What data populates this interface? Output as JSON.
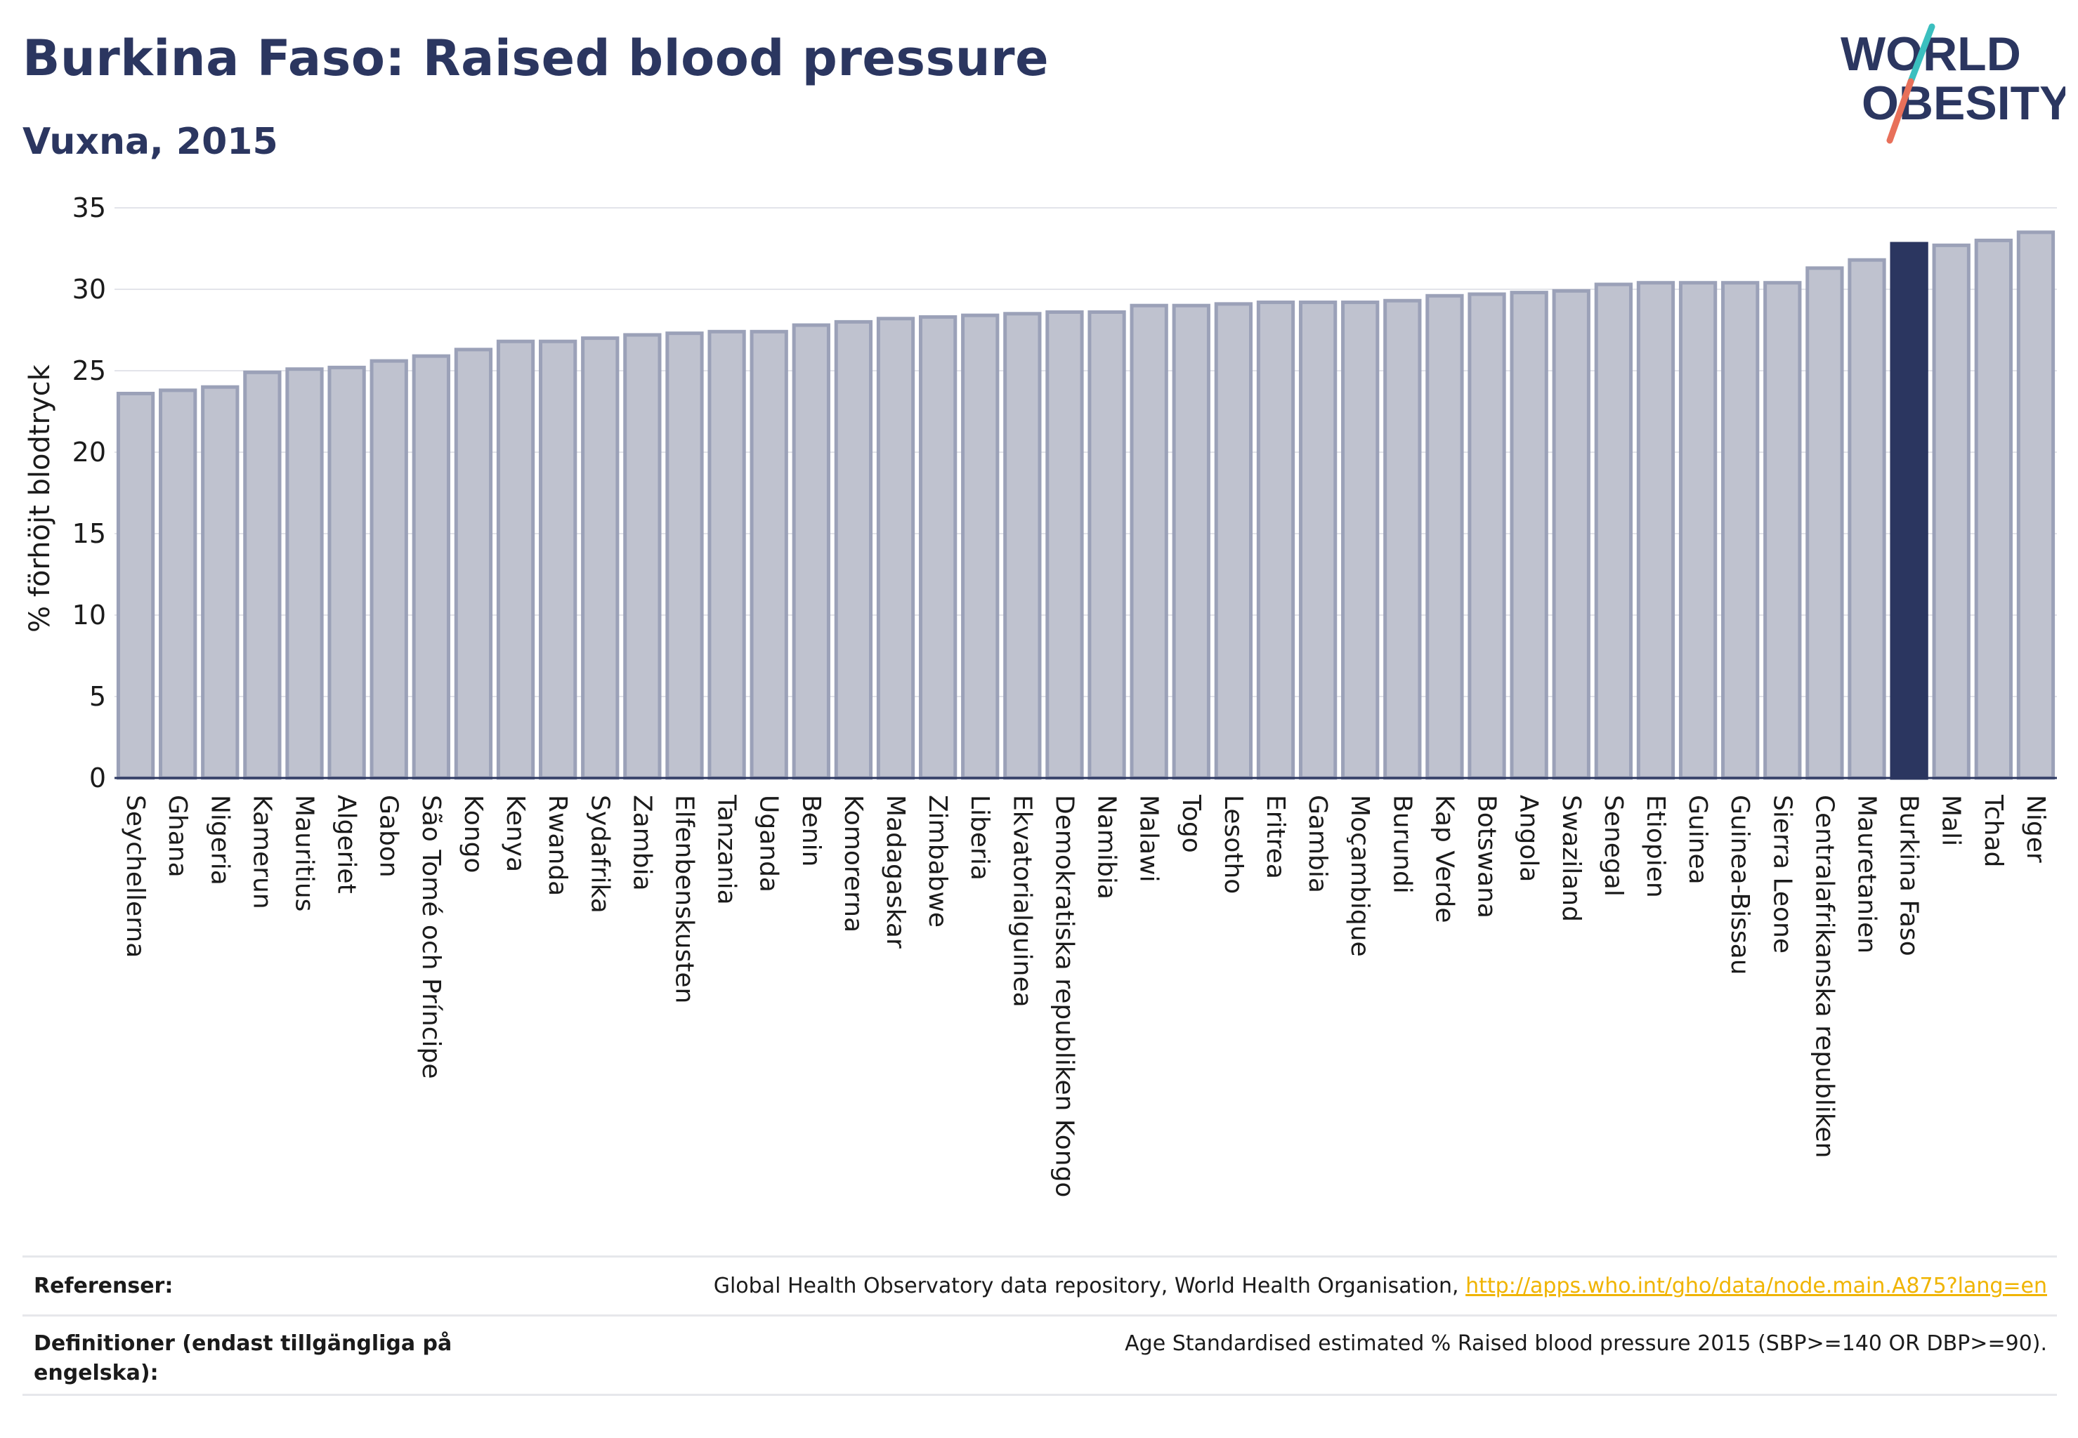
{
  "header": {
    "title": "Burkina Faso: Raised blood pressure",
    "subtitle": "Vuxna, 2015"
  },
  "logo": {
    "line1": "WORLD",
    "line2": "OBESITY",
    "text_color": "#2b3660",
    "slash_top_color": "#3bbfbf",
    "slash_bottom_color": "#e8705a"
  },
  "colors": {
    "bar_fill": "#bfc2cf",
    "bar_stroke": "#9ba1b8",
    "highlight_fill": "#2b3660",
    "axis": "#2b3660",
    "grid": "#e3e4ea"
  },
  "chart_data": {
    "type": "bar",
    "ylabel": "% förhöjt blodtryck",
    "ylim": [
      0,
      35
    ],
    "yticks": [
      0,
      5,
      10,
      15,
      20,
      25,
      30,
      35
    ],
    "grid": true,
    "highlight": "Burkina Faso",
    "categories": [
      "Seychellerna",
      "Ghana",
      "Nigeria",
      "Kamerun",
      "Mauritius",
      "Algeriet",
      "Gabon",
      "São Tomé och Príncipe",
      "Kongo",
      "Kenya",
      "Rwanda",
      "Sydafrika",
      "Zambia",
      "Elfenbenskusten",
      "Tanzania",
      "Uganda",
      "Benin",
      "Komorerna",
      "Madagaskar",
      "Zimbabwe",
      "Liberia",
      "Ekvatorialguinea",
      "Demokratiska republiken Kongo",
      "Namibia",
      "Malawi",
      "Togo",
      "Lesotho",
      "Eritrea",
      "Gambia",
      "Moçambique",
      "Burundi",
      "Kap Verde",
      "Botswana",
      "Angola",
      "Swaziland",
      "Senegal",
      "Etiopien",
      "Guinea",
      "Guinea-Bissau",
      "Sierra Leone",
      "Centralafrikanska republiken",
      "Mauretanien",
      "Burkina Faso",
      "Mali",
      "Tchad",
      "Niger"
    ],
    "values": [
      23.6,
      23.8,
      24.0,
      24.9,
      25.1,
      25.2,
      25.6,
      25.9,
      26.3,
      26.8,
      26.8,
      27.0,
      27.2,
      27.3,
      27.4,
      27.4,
      27.8,
      28.0,
      28.2,
      28.3,
      28.4,
      28.5,
      28.6,
      28.6,
      29.0,
      29.0,
      29.1,
      29.2,
      29.2,
      29.2,
      29.3,
      29.6,
      29.7,
      29.8,
      29.9,
      30.3,
      30.4,
      30.4,
      30.4,
      30.4,
      31.3,
      31.8,
      32.8,
      32.7,
      33.0,
      33.5
    ]
  },
  "footer": {
    "references_label": "Referenser:",
    "references_text": "Global Health Observatory data repository, World Health Organisation,",
    "references_link": "http://apps.who.int/gho/data/node.main.A875?lang=en",
    "definitions_label": "Definitioner (endast tillgängliga på engelska):",
    "definitions_text": "Age Standardised estimated % Raised blood pressure 2015 (SBP>=140 OR DBP>=90)."
  }
}
